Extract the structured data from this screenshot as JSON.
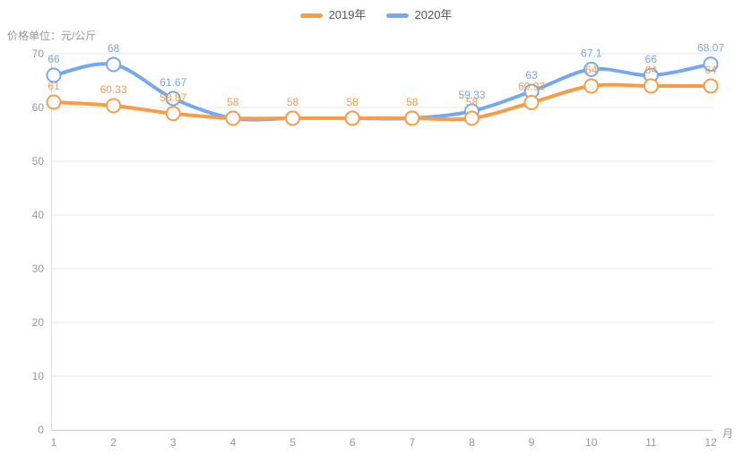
{
  "header": {
    "unit_label": "价格单位：元/公斤"
  },
  "chart_data": {
    "type": "line",
    "title": "",
    "x": [
      1,
      2,
      3,
      4,
      5,
      6,
      7,
      8,
      9,
      10,
      11,
      12
    ],
    "xlabel": "月",
    "ylabel": "价格单位：元/公斤",
    "ylim": [
      0,
      70
    ],
    "ytick_step": 10,
    "yticks": [
      0,
      10,
      20,
      30,
      40,
      50,
      60,
      70
    ],
    "grid": true,
    "smooth": true,
    "point_style": "hollow-circle",
    "legend_position": "top-center",
    "series": [
      {
        "name": "2019年",
        "color": "#F89C45",
        "values": [
          61,
          60.33,
          58.87,
          58,
          58,
          58,
          58,
          58,
          60.92,
          64,
          64,
          64
        ]
      },
      {
        "name": "2020年",
        "color": "#74A8F0",
        "values": [
          66,
          68,
          61.67,
          58,
          58,
          58,
          58,
          59.33,
          63,
          67.1,
          66,
          68.07
        ]
      }
    ],
    "colors": {
      "grid_line": "#E8E8E8",
      "x_axis_line": "#C9C9C9",
      "y_axis_line": "#DDDDDD",
      "tick_label": "#999999",
      "marker_fill": "#FFFFFF"
    }
  }
}
